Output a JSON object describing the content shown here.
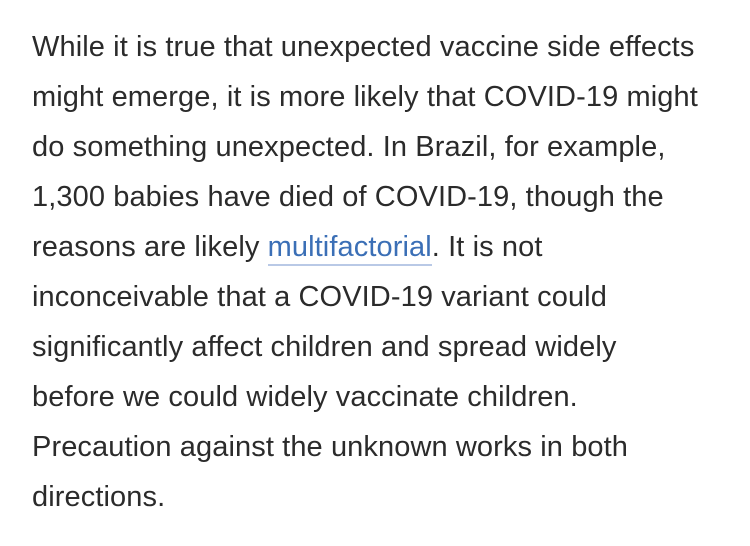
{
  "paragraph": {
    "line1": "While it is true that unexpected vaccine side effects",
    "line2": "might emerge, it is more likely that COVID-19 might",
    "line3": "do something unexpected. In Brazil, for example,",
    "line4": "1,300 babies have died of COVID-19, though the",
    "line5_before": "reasons are likely ",
    "link_text": "multifactorial",
    "line5_after": ". It is not",
    "line6": "inconceivable that a COVID-19 variant could",
    "line7": "significantly affect children and spread widely",
    "line8": "before we could widely vaccinate children.",
    "line9": "Precaution against the unknown works in both",
    "line10": "directions."
  },
  "colors": {
    "text": "#2b2b2b",
    "link": "#3b6fb6",
    "link_underline": "#b9c9e6"
  }
}
